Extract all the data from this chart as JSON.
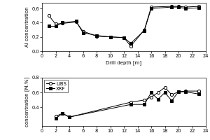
{
  "top": {
    "libs_x": [
      1,
      2,
      3,
      5,
      6,
      8,
      10,
      12,
      13,
      15,
      16,
      19,
      20,
      21,
      23
    ],
    "libs_y": [
      0.5,
      0.38,
      0.39,
      0.41,
      0.28,
      0.21,
      0.2,
      0.19,
      0.07,
      0.3,
      0.62,
      0.63,
      0.63,
      0.62,
      0.63
    ],
    "xrf_x": [
      1,
      2,
      3,
      5,
      6,
      8,
      10,
      12,
      13,
      15,
      16,
      19,
      20,
      21,
      23
    ],
    "xrf_y": [
      0.35,
      0.35,
      0.4,
      0.42,
      0.26,
      0.22,
      0.2,
      0.19,
      0.11,
      0.29,
      0.6,
      0.62,
      0.62,
      0.6,
      0.61
    ],
    "ylabel": "Al concentration",
    "xlabel": "Drill depth [m]",
    "ylim": [
      0.0,
      0.68
    ],
    "xlim": [
      0,
      24
    ],
    "yticks": [
      0.0,
      0.2,
      0.4,
      0.6
    ],
    "xticks": [
      0,
      2,
      4,
      6,
      8,
      10,
      12,
      14,
      16,
      18,
      20,
      22,
      24
    ]
  },
  "bottom": {
    "libs_x": [
      2,
      3,
      4,
      13,
      15,
      16,
      17,
      18,
      19,
      20,
      21,
      23
    ],
    "libs_y": [
      0.28,
      0.32,
      0.27,
      0.47,
      0.5,
      0.54,
      0.6,
      0.67,
      0.57,
      0.61,
      0.62,
      0.62
    ],
    "xrf_x": [
      2,
      3,
      4,
      13,
      15,
      16,
      17,
      18,
      19,
      20,
      21,
      23
    ],
    "xrf_y": [
      0.25,
      0.32,
      0.27,
      0.44,
      0.44,
      0.6,
      0.51,
      0.6,
      0.49,
      0.61,
      0.61,
      0.58
    ],
    "ylabel": "concentration [M.%]",
    "xlabel": "",
    "ylim": [
      0.15,
      0.8
    ],
    "xlim": [
      0,
      24
    ],
    "yticks": [
      0.4,
      0.6,
      0.8
    ],
    "ytick_labels": [
      "0.4",
      "0.6",
      "0.8"
    ],
    "xticks": [
      0,
      2,
      4,
      6,
      8,
      10,
      12,
      14,
      16,
      18,
      20,
      22,
      24
    ],
    "legend_libs": "LIBS",
    "legend_xrf": "XRF"
  },
  "line_color": "#000000",
  "libs_marker": "o",
  "xrf_marker": "s",
  "markersize": 3.0,
  "linewidth": 0.7,
  "fontsize": 5.0,
  "tick_fontsize": 4.8
}
